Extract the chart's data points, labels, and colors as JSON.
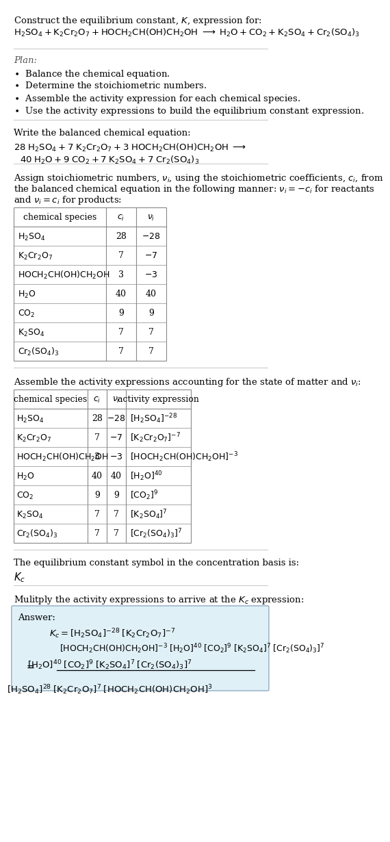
{
  "bg_color": "#ffffff",
  "text_color": "#000000",
  "title_line1": "Construct the equilibrium constant, $K$, expression for:",
  "reaction_unbalanced": "$\\mathrm{H_2SO_4 + K_2Cr_2O_7 + HOCH_2CH(OH)CH_2OH}$  $\\longrightarrow$  $\\mathrm{H_2O + CO_2 + K_2SO_4 + Cr_2(SO_4)_3}$",
  "plan_header": "Plan:",
  "plan_items": [
    "\\textbullet  Balance the chemical equation.",
    "\\textbullet  Determine the stoichiometric numbers.",
    "\\textbullet  Assemble the activity expression for each chemical species.",
    "\\textbullet  Use the activity expressions to build the equilibrium constant expression."
  ],
  "section2_header": "Write the balanced chemical equation:",
  "balanced_eq_line1": "$28\\ \\mathrm{H_2SO_4 + 7\\ K_2Cr_2O_7 + 3\\ HOCH_2CH(OH)CH_2OH}$  $\\longrightarrow$",
  "balanced_eq_line2": "$\\quad 40\\ \\mathrm{H_2O + 9\\ CO_2 + 7\\ K_2SO_4 + 7\\ Cr_2(SO_4)_3}$",
  "section3_header": "Assign stoichiometric numbers, $\\nu_i$, using the stoichiometric coefficients, $c_i$, from the balanced chemical equation in the following manner: $\\nu_i = -c_i$ for reactants and $\\nu_i = c_i$ for products:",
  "table1_headers": [
    "chemical species",
    "$c_i$",
    "$\\nu_i$"
  ],
  "table1_rows": [
    [
      "$\\mathrm{H_2SO_4}$",
      "28",
      "$-28$"
    ],
    [
      "$\\mathrm{K_2Cr_2O_7}$",
      "7",
      "$-7$"
    ],
    [
      "$\\mathrm{HOCH_2CH(OH)CH_2OH}$",
      "3",
      "$-3$"
    ],
    [
      "$\\mathrm{H_2O}$",
      "40",
      "40"
    ],
    [
      "$\\mathrm{CO_2}$",
      "9",
      "9"
    ],
    [
      "$\\mathrm{K_2SO_4}$",
      "7",
      "7"
    ],
    [
      "$\\mathrm{Cr_2(SO_4)_3}$",
      "7",
      "7"
    ]
  ],
  "section4_header": "Assemble the activity expressions accounting for the state of matter and $\\nu_i$:",
  "table2_headers": [
    "chemical species",
    "$c_i$",
    "$\\nu_i$",
    "activity expression"
  ],
  "table2_rows": [
    [
      "$\\mathrm{H_2SO_4}$",
      "28",
      "$-28$",
      "$[\\mathrm{H_2SO_4}]^{-28}$"
    ],
    [
      "$\\mathrm{K_2Cr_2O_7}$",
      "7",
      "$-7$",
      "$[\\mathrm{K_2Cr_2O_7}]^{-7}$"
    ],
    [
      "$\\mathrm{HOCH_2CH(OH)CH_2OH}$",
      "3",
      "$-3$",
      "$[\\mathrm{HOCH_2CH(OH)CH_2OH}]^{-3}$"
    ],
    [
      "$\\mathrm{H_2O}$",
      "40",
      "40",
      "$[\\mathrm{H_2O}]^{40}$"
    ],
    [
      "$\\mathrm{CO_2}$",
      "9",
      "9",
      "$[\\mathrm{CO_2}]^9$"
    ],
    [
      "$\\mathrm{K_2SO_4}$",
      "7",
      "7",
      "$[\\mathrm{K_2SO_4}]^7$"
    ],
    [
      "$\\mathrm{Cr_2(SO_4)_3}$",
      "7",
      "7",
      "$[\\mathrm{Cr_2(SO_4)_3}]^7$"
    ]
  ],
  "section5_text": "The equilibrium constant symbol in the concentration basis is:",
  "kc_symbol": "$K_c$",
  "section6_text": "Mulitply the activity expressions to arrive at the $K_c$ expression:",
  "answer_box_color": "#e8f4f8",
  "answer_box_border": "#a0c8d8",
  "answer_label": "Answer:",
  "answer_line1": "$K_c = [\\mathrm{H_2SO_4}]^{-28}\\ [\\mathrm{K_2Cr_2O_7}]^{-7}$",
  "answer_line2": "$[\\mathrm{HOCH_2CH(OH)CH_2OH}]^{-3}\\ [\\mathrm{H_2O}]^{40}\\ [\\mathrm{CO_2}]^{9}\\ [\\mathrm{K_2SO_4}]^7\\ [\\mathrm{Cr_2(SO_4)_3}]^7$",
  "answer_line3_num": "$[\\mathrm{H_2O}]^{40}\\ [\\mathrm{CO_2}]^{9}\\ [\\mathrm{K_2SO_4}]^7\\ [\\mathrm{Cr_2(SO_4)_3}]^7$",
  "answer_line3_den": "$[\\mathrm{H_2SO_4}]^{28}\\ [\\mathrm{K_2Cr_2O_7}]^7\\ [\\mathrm{HOCH_2CH(OH)CH_2OH}]^3$"
}
